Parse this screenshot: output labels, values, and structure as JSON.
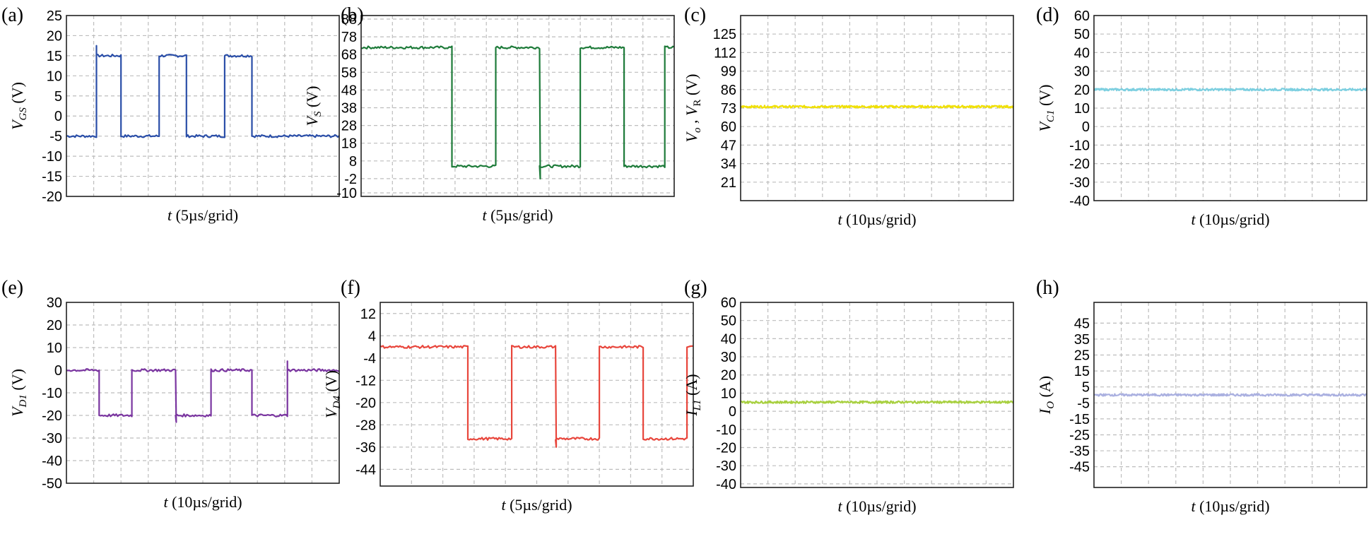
{
  "chart_data": [
    {
      "id": "a",
      "type": "line",
      "panel_label": "(a)",
      "color": "#2a4ea8",
      "ylabel": "V_GS (V)",
      "ylabel_main": "V",
      "ylabel_sub": "GS",
      "ylabel_unit": " (V)",
      "xlabel_var": "t",
      "xlabel_rest": " (5µs/grid)",
      "ylim": [
        -20,
        25
      ],
      "yticks": [
        "25",
        "20",
        "15",
        "10",
        "5",
        "0",
        "-5",
        "-10",
        "-15",
        "-20"
      ],
      "ytick_values": [
        25,
        20,
        15,
        10,
        5,
        0,
        -5,
        -10,
        -15,
        -20
      ],
      "waveform": "square",
      "high": 15,
      "low": -5,
      "edges": [
        0.11,
        0.2,
        0.34,
        0.44,
        0.58,
        0.68
      ],
      "start_high": false,
      "overshoot": 17.5,
      "undershoot": -6
    },
    {
      "id": "b",
      "type": "line",
      "panel_label": "(b)",
      "color": "#1e7b3a",
      "ylabel": "V_S (V)",
      "ylabel_main": "V",
      "ylabel_sub": "S",
      "ylabel_unit": " (V)",
      "xlabel_var": "t",
      "xlabel_rest": " (5µs/grid)",
      "ylim": [
        -12,
        90
      ],
      "yticks": [
        "88",
        "78",
        "68",
        "58",
        "48",
        "38",
        "28",
        "18",
        "8",
        "-2",
        "-10"
      ],
      "ytick_values": [
        88,
        78,
        68,
        58,
        48,
        38,
        28,
        18,
        8,
        -2,
        -10
      ],
      "waveform": "square",
      "high": 72,
      "low": 5,
      "edges": [
        0.29,
        0.43,
        0.57,
        0.7,
        0.84,
        0.97
      ],
      "start_high": true,
      "undershoot": -2
    },
    {
      "id": "c",
      "type": "line",
      "panel_label": "(c)",
      "color": "#f0e000",
      "ylabel": "V_o , V_R (V)",
      "ylabel_main": "V",
      "ylabel_sub": "o",
      "ylabel_mid": " , V",
      "ylabel_sub2": "R",
      "ylabel_unit": " (V)",
      "xlabel_var": "t",
      "xlabel_rest": " (10µs/grid)",
      "ylim": [
        8,
        138
      ],
      "yticks": [
        "125",
        "112",
        "99",
        "86",
        "73",
        "60",
        "47",
        "34",
        "21"
      ],
      "ytick_values": [
        125,
        112,
        99,
        86,
        73,
        60,
        47,
        34,
        21
      ],
      "waveform": "dc",
      "level": 74
    },
    {
      "id": "d",
      "type": "line",
      "panel_label": "(d)",
      "color": "#7ccfe0",
      "ylabel": "V_C1 (V)",
      "ylabel_main": "V",
      "ylabel_sub": "C1",
      "ylabel_unit": " (V)",
      "xlabel_var": "t",
      "xlabel_rest": " (10µs/grid)",
      "ylim": [
        -40,
        60
      ],
      "yticks": [
        "60",
        "50",
        "40",
        "30",
        "20",
        "10",
        "0",
        "-10",
        "-20",
        "-30",
        "-40"
      ],
      "ytick_values": [
        60,
        50,
        40,
        30,
        20,
        10,
        0,
        -10,
        -20,
        -30,
        -40
      ],
      "waveform": "dc",
      "level": 20
    },
    {
      "id": "e",
      "type": "line",
      "panel_label": "(e)",
      "color": "#7a35a0",
      "ylabel": "V_D1 (V)",
      "ylabel_main": "V",
      "ylabel_sub": "D1",
      "ylabel_unit": " (V)",
      "xlabel_var": "t",
      "xlabel_rest": " (10µs/grid)",
      "ylim": [
        -50,
        30
      ],
      "yticks": [
        "30",
        "20",
        "10",
        "0",
        "-10",
        "-20",
        "-30",
        "-40",
        "-50"
      ],
      "ytick_values": [
        30,
        20,
        10,
        0,
        -10,
        -20,
        -30,
        -40,
        -50
      ],
      "waveform": "square",
      "high": 0,
      "low": -20,
      "edges": [
        0.12,
        0.24,
        0.4,
        0.53,
        0.68,
        0.81
      ],
      "start_high": true,
      "overshoot": 4,
      "undershoot": -23
    },
    {
      "id": "f",
      "type": "line",
      "panel_label": "(f)",
      "color": "#e8463c",
      "ylabel": "V_D4 (V)",
      "ylabel_main": "V",
      "ylabel_sub": "D4",
      "ylabel_unit": " (V)",
      "xlabel_var": "t",
      "xlabel_rest": " (5µs/grid)",
      "ylim": [
        -50,
        16
      ],
      "yticks": [
        "12",
        "4",
        "-4",
        "-12",
        "-20",
        "-28",
        "-36",
        "-44"
      ],
      "ytick_values": [
        12,
        4,
        -4,
        -12,
        -20,
        -28,
        -36,
        -44
      ],
      "waveform": "square",
      "high": 0,
      "low": -33,
      "edges": [
        0.28,
        0.42,
        0.56,
        0.7,
        0.84,
        0.98
      ],
      "start_high": true,
      "undershoot": -36
    },
    {
      "id": "g",
      "type": "line",
      "panel_label": "(g)",
      "color": "#a8d040",
      "ylabel": "I_L1 (A)",
      "ylabel_main": "I",
      "ylabel_sub": "L1",
      "ylabel_unit": " (A)",
      "xlabel_var": "t",
      "xlabel_rest": " (10µs/grid)",
      "ylim": [
        -42,
        60
      ],
      "yticks": [
        "60",
        "50",
        "40",
        "30",
        "20",
        "10",
        "0",
        "-10",
        "-20",
        "-30",
        "-40"
      ],
      "ytick_values": [
        60,
        50,
        40,
        30,
        20,
        10,
        0,
        -10,
        -20,
        -30,
        -40
      ],
      "waveform": "dc",
      "level": 5
    },
    {
      "id": "h",
      "type": "line",
      "panel_label": "(h)",
      "color": "#aab0e0",
      "ylabel": "I_O (A)",
      "ylabel_main": "I",
      "ylabel_sub": "O",
      "ylabel_unit": " (A)",
      "xlabel_var": "t",
      "xlabel_rest": " (10µs/grid)",
      "ylim": [
        -58,
        58
      ],
      "yticks": [
        "45",
        "35",
        "25",
        "15",
        "5",
        "-5",
        "-15",
        "-25",
        "-35",
        "-45"
      ],
      "ytick_values": [
        45,
        35,
        25,
        15,
        5,
        -5,
        -15,
        -25,
        -35,
        -45
      ],
      "waveform": "dc",
      "level": 0
    }
  ]
}
